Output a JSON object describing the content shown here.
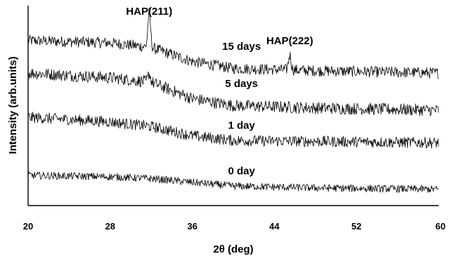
{
  "chart_data": {
    "type": "line",
    "title": "",
    "xlabel": "2θ (deg)",
    "ylabel": "Intensity (arb.units)",
    "xlim": [
      20,
      60
    ],
    "x_ticks": [
      20,
      28,
      36,
      44,
      52,
      60
    ],
    "y_ticks": [],
    "grid": false,
    "legend": "none",
    "series": [
      {
        "name": "15 days",
        "baseline": [
          [
            20,
            3.55
          ],
          [
            28,
            3.5
          ],
          [
            32,
            3.4
          ],
          [
            36,
            3.1
          ],
          [
            40,
            2.95
          ],
          [
            48,
            2.9
          ],
          [
            60,
            2.85
          ]
        ],
        "noise": 0.12,
        "peaks": [
          {
            "x": 31.8,
            "height": 0.75
          },
          {
            "x": 45.5,
            "height": 0.32
          }
        ]
      },
      {
        "name": "5 days",
        "baseline": [
          [
            20,
            2.85
          ],
          [
            28,
            2.75
          ],
          [
            32,
            2.65
          ],
          [
            36,
            2.3
          ],
          [
            40,
            2.15
          ],
          [
            48,
            2.1
          ],
          [
            60,
            2.05
          ]
        ],
        "noise": 0.13,
        "peaks": [
          {
            "x": 31.8,
            "height": 0.18
          }
        ]
      },
      {
        "name": "1 day",
        "baseline": [
          [
            20,
            1.9
          ],
          [
            28,
            1.8
          ],
          [
            32,
            1.7
          ],
          [
            36,
            1.5
          ],
          [
            40,
            1.4
          ],
          [
            48,
            1.38
          ],
          [
            60,
            1.35
          ]
        ],
        "noise": 0.12,
        "peaks": []
      },
      {
        "name": "0 day",
        "baseline": [
          [
            20,
            0.65
          ],
          [
            28,
            0.62
          ],
          [
            32,
            0.58
          ],
          [
            36,
            0.5
          ],
          [
            40,
            0.42
          ],
          [
            48,
            0.38
          ],
          [
            60,
            0.35
          ]
        ],
        "noise": 0.08,
        "peaks": []
      }
    ],
    "annotations": [
      {
        "text": "HAP(211)",
        "x": 31.8
      },
      {
        "text": "HAP(222)",
        "x": 45.5
      }
    ]
  }
}
